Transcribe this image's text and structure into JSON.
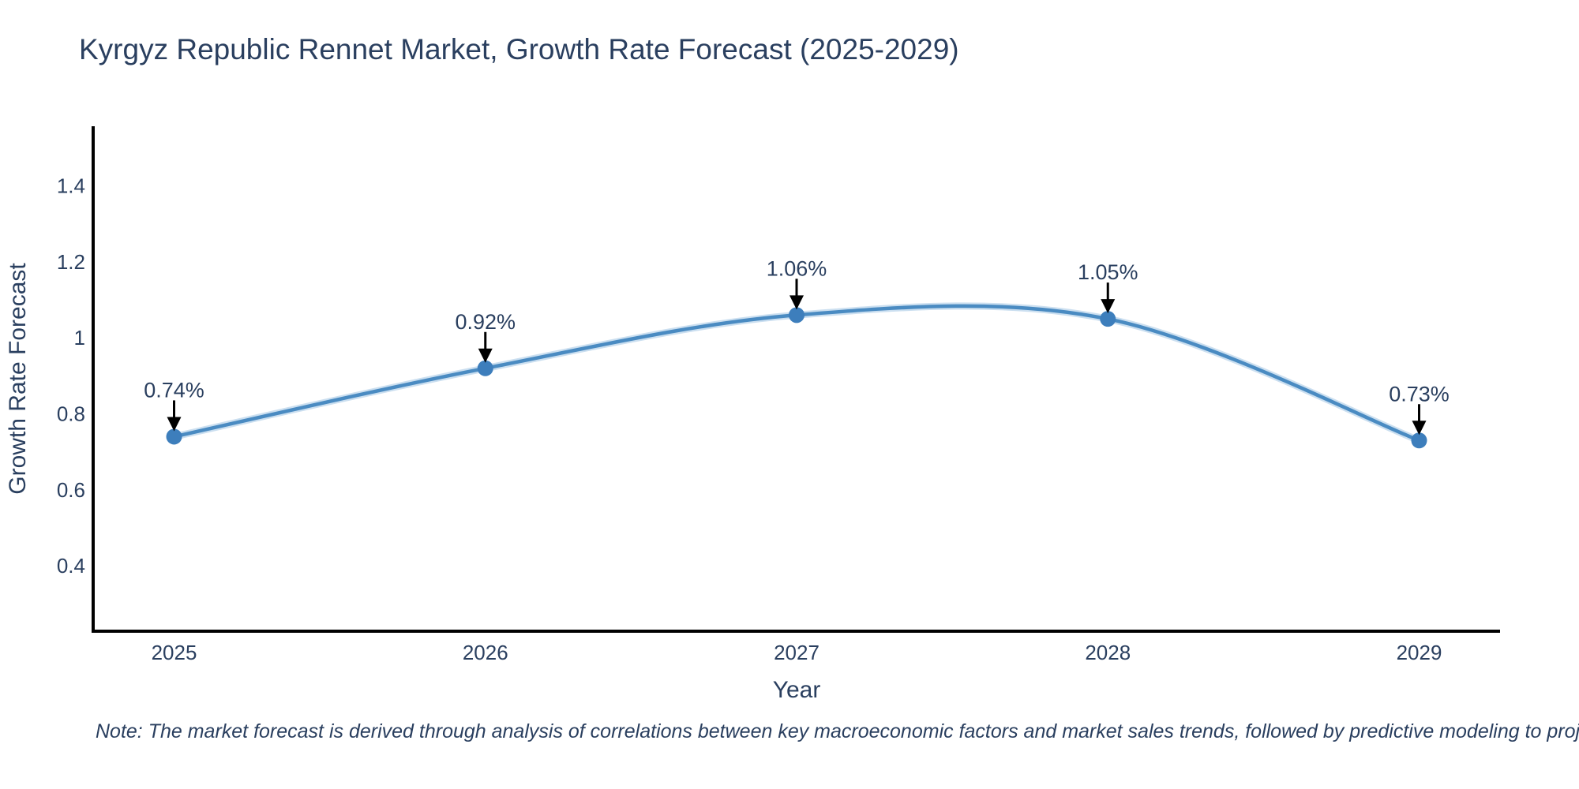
{
  "note": {
    "text": "Note: The market forecast is derived through analysis of correlations between key macroeconomic factors and market sales trends, followed by predictive modeling to project future sales"
  },
  "chart_data": {
    "type": "line",
    "title": "Kyrgyz Republic Rennet Market, Growth Rate Forecast (2025-2029)",
    "xlabel": "Year",
    "ylabel": "Growth Rate Forecast",
    "x": [
      2025,
      2026,
      2027,
      2028,
      2029
    ],
    "values": [
      0.74,
      0.92,
      1.06,
      1.05,
      0.73
    ],
    "point_labels": [
      "0.74%",
      "0.92%",
      "1.06%",
      "1.05%",
      "0.73%"
    ],
    "xticks": [
      "2025",
      "2026",
      "2027",
      "2028",
      "2029"
    ],
    "yticks": [
      "0.4",
      "0.6",
      "0.8",
      "1",
      "1.2",
      "1.4"
    ],
    "ytick_values": [
      0.4,
      0.6,
      0.8,
      1.0,
      1.2,
      1.4
    ],
    "xlim": [
      2024.74,
      2029.26
    ],
    "ylim": [
      0.228,
      1.557
    ],
    "line_shape": "spline",
    "grid": false,
    "legend": false,
    "colors": {
      "line": "#4a8bc2",
      "line_halo": "#8cb8dd",
      "marker": "#3d7ebc",
      "axis": "#000000",
      "text": "#2a3f5f",
      "arrow": "#000000"
    }
  }
}
